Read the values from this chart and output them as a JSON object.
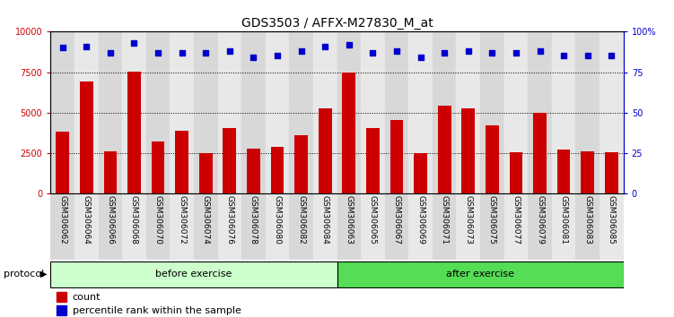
{
  "title": "GDS3503 / AFFX-M27830_M_at",
  "categories": [
    "GSM306062",
    "GSM306064",
    "GSM306066",
    "GSM306068",
    "GSM306070",
    "GSM306072",
    "GSM306074",
    "GSM306076",
    "GSM306078",
    "GSM306080",
    "GSM306082",
    "GSM306084",
    "GSM306063",
    "GSM306065",
    "GSM306067",
    "GSM306069",
    "GSM306071",
    "GSM306073",
    "GSM306075",
    "GSM306077",
    "GSM306079",
    "GSM306081",
    "GSM306083",
    "GSM306085"
  ],
  "counts_all": [
    3800,
    6900,
    2600,
    7550,
    3200,
    3900,
    2500,
    4050,
    2750,
    2900,
    3600,
    5250,
    7450,
    4050,
    4550,
    2500,
    5400,
    5250,
    4200,
    2550,
    5000,
    2700,
    2600,
    2550
  ],
  "percentile": [
    90,
    91,
    87,
    93,
    87,
    87,
    87,
    88,
    84,
    85,
    88,
    91,
    92,
    87,
    88,
    84,
    87,
    88,
    87,
    87,
    88,
    85,
    85,
    85
  ],
  "bar_color": "#cc0000",
  "dot_color": "#0000cc",
  "ylim_left": [
    0,
    10000
  ],
  "ylim_right": [
    0,
    100
  ],
  "yticks_left": [
    0,
    2500,
    5000,
    7500,
    10000
  ],
  "yticks_right": [
    0,
    25,
    50,
    75,
    100
  ],
  "ytick_labels_left": [
    "0",
    "2500",
    "5000",
    "7500",
    "10000"
  ],
  "ytick_labels_right": [
    "0",
    "25",
    "50",
    "75",
    "100%"
  ],
  "before_count": 12,
  "after_count": 12,
  "before_label": "before exercise",
  "after_label": "after exercise",
  "protocol_label": "protocol",
  "legend_count_label": "count",
  "legend_pct_label": "percentile rank within the sample",
  "before_color": "#ccffcc",
  "after_color": "#55dd55",
  "title_fontsize": 10,
  "tick_fontsize": 7,
  "axis_color_left": "#cc0000",
  "axis_color_right": "#0000cc",
  "col_colors": [
    "#d8d8d8",
    "#e8e8e8"
  ]
}
